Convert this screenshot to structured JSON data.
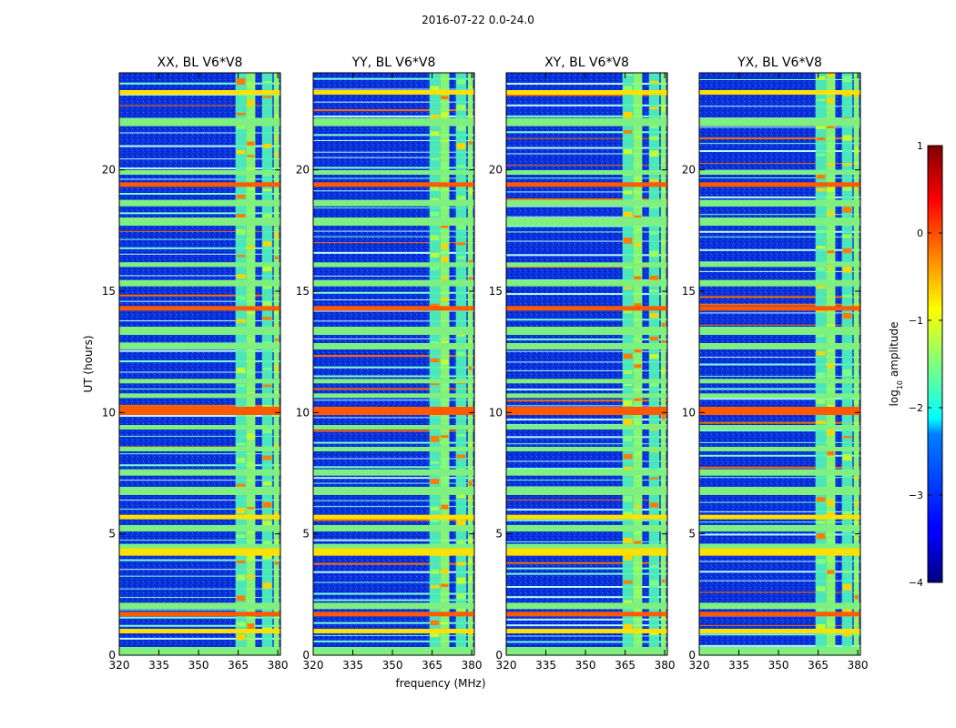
{
  "chart_data": {
    "type": "heatmap",
    "suptitle": "2016-07-22 0.0-24.0",
    "xlabel": "frequency (MHz)",
    "ylabel": "UT (hours)",
    "xlim": [
      320,
      381
    ],
    "ylim": [
      0,
      24
    ],
    "xticks": [
      320,
      335,
      350,
      365,
      380
    ],
    "yticks": [
      0,
      5,
      10,
      15,
      20
    ],
    "panels": [
      {
        "title": "XX, BL V6*V8",
        "pol": "XX"
      },
      {
        "title": "YY, BL V6*V8",
        "pol": "YY"
      },
      {
        "title": "XY, BL V6*V8",
        "pol": "XY"
      },
      {
        "title": "YX, BL V6*V8",
        "pol": "YX"
      }
    ],
    "colorbar": {
      "label": "log10 amplitude",
      "label_main": "log",
      "label_sub": "10",
      "label_rest": " amplitude",
      "min": -4,
      "max": 1,
      "ticks": [
        "1",
        "0",
        "−1",
        "−2",
        "−3",
        "−4"
      ],
      "colormap": "jet"
    },
    "rfi_bands_mhz": [
      [
        364.0,
        368.0
      ],
      [
        368.0,
        371.5
      ],
      [
        374.0,
        378.0
      ],
      [
        378.5,
        380.5
      ]
    ],
    "rfi_time_strips_hours": [
      0.0,
      0.9,
      1.6,
      1.9,
      4.1,
      4.4,
      5.1,
      5.6,
      6.6,
      7.4,
      8.4,
      9.3,
      9.9,
      10.6,
      11.2,
      12.6,
      13.2,
      14.2,
      15.2,
      16.0,
      17.7,
      18.5,
      19.3,
      19.8,
      21.8,
      23.1
    ]
  }
}
